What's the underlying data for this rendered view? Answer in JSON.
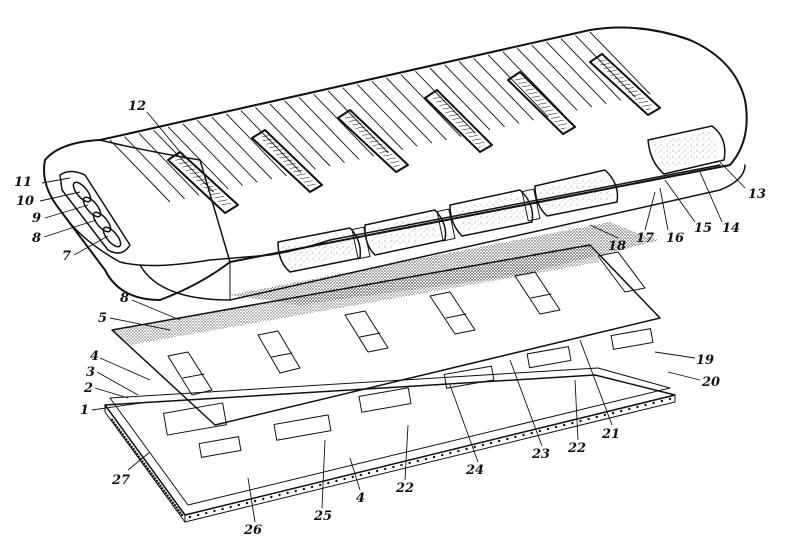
{
  "callouts": {
    "c1": "1",
    "c2": "2",
    "c3": "3",
    "c4a": "4",
    "c4b": "4",
    "c5": "5",
    "c7": "7",
    "c8a": "8",
    "c8b": "8",
    "c9": "9",
    "c10": "10",
    "c11": "11",
    "c12": "12",
    "c13": "13",
    "c14": "14",
    "c15": "15",
    "c16a": "16",
    "c17": "17",
    "c18": "18",
    "c19": "19",
    "c20": "20",
    "c21": "21",
    "c22a": "22",
    "c22b": "22",
    "c23": "23",
    "c24": "24",
    "c25": "25",
    "c26": "26",
    "c27": "27"
  },
  "colors": {
    "ink": "#111111",
    "paper": "#ffffff",
    "speckle": "#222222"
  }
}
